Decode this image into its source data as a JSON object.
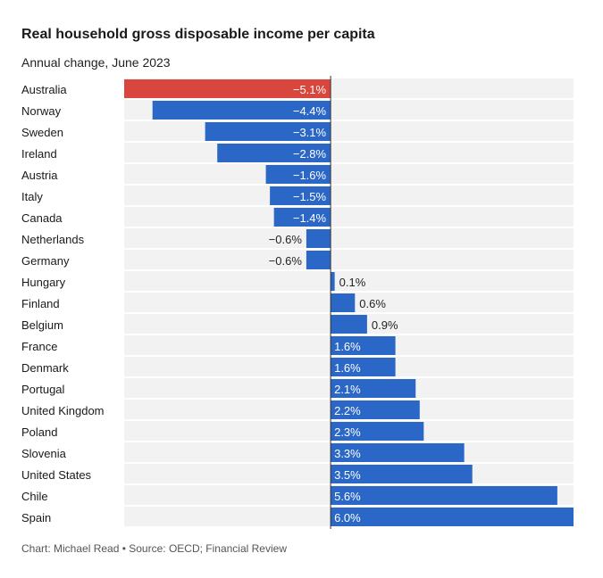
{
  "title": "Real household gross disposable income per capita",
  "subtitle": "Annual change, June 2023",
  "source": "Chart: Michael Read • Source: OECD; Financial Review",
  "colors": {
    "negative_highlight": "#d9463d",
    "bar": "#2b67c6",
    "row_background": "#f2f2f2",
    "axis": "#333333",
    "label_inside": "#ffffff",
    "label_outside": "#222222"
  },
  "chart_data": {
    "type": "bar",
    "orientation": "horizontal",
    "title": "Real household gross disposable income per capita",
    "subtitle": "Annual change, June 2023",
    "xlabel": "",
    "ylabel": "",
    "unit": "%",
    "xlim": [
      -5.1,
      6.0
    ],
    "grid": false,
    "highlight": [
      "Australia"
    ],
    "categories": [
      "Australia",
      "Norway",
      "Sweden",
      "Ireland",
      "Austria",
      "Italy",
      "Canada",
      "Netherlands",
      "Germany",
      "Hungary",
      "Finland",
      "Belgium",
      "France",
      "Denmark",
      "Portugal",
      "United Kingdom",
      "Poland",
      "Slovenia",
      "United States",
      "Chile",
      "Spain"
    ],
    "values": [
      -5.1,
      -4.4,
      -3.1,
      -2.8,
      -1.6,
      -1.5,
      -1.4,
      -0.6,
      -0.6,
      0.1,
      0.6,
      0.9,
      1.6,
      1.6,
      2.1,
      2.2,
      2.3,
      3.3,
      3.5,
      5.6,
      6.0
    ],
    "value_labels": [
      "−5.1%",
      "−4.4%",
      "−3.1%",
      "−2.8%",
      "−1.6%",
      "−1.5%",
      "−1.4%",
      "−0.6%",
      "−0.6%",
      "0.1%",
      "0.6%",
      "0.9%",
      "1.6%",
      "1.6%",
      "2.1%",
      "2.2%",
      "2.3%",
      "3.3%",
      "3.5%",
      "5.6%",
      "6.0%"
    ]
  }
}
